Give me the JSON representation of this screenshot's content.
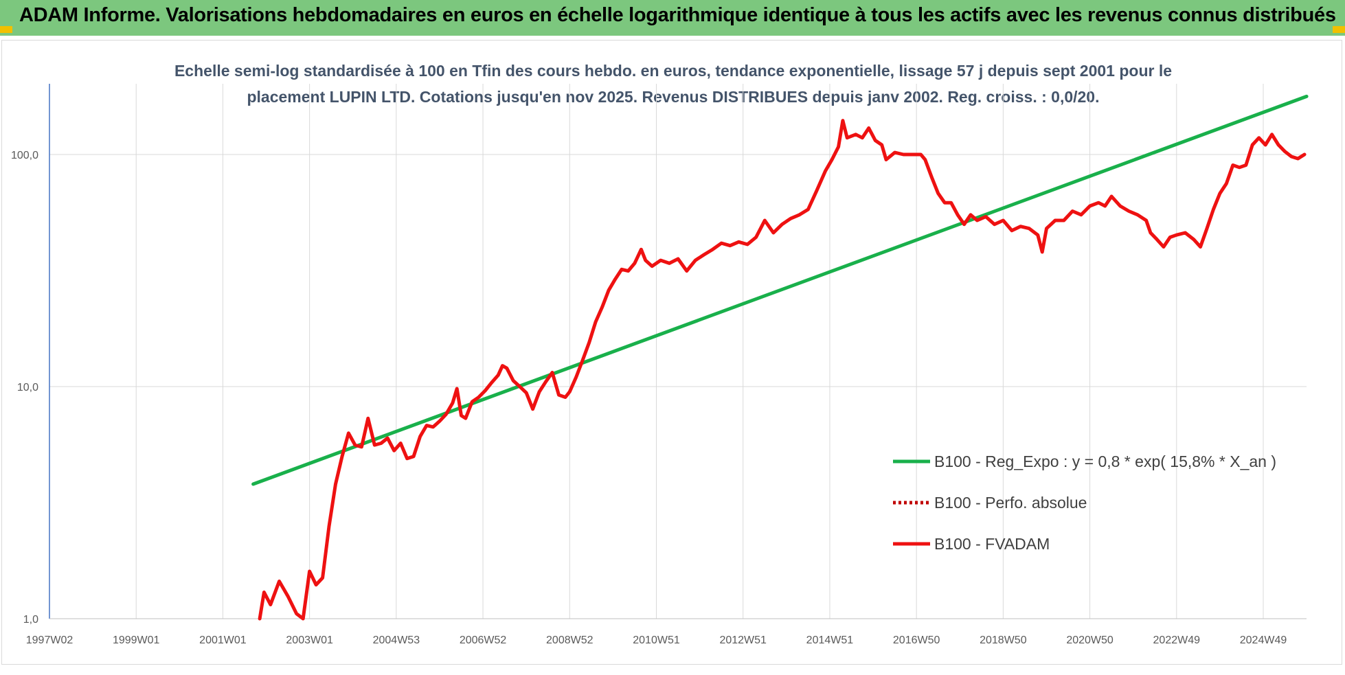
{
  "header": {
    "title": "ADAM Informe. Valorisations hebdomadaires en euros en échelle logarithmique identique à tous les actifs avec les revenus connus distribués"
  },
  "colors": {
    "header_bg": "#7cc77e",
    "corner": "#f2c000",
    "regression": "#19b04b",
    "fvadam": "#ee1111",
    "perfo": "#c00000"
  },
  "chart_data": {
    "type": "line",
    "title_line1": "Echelle semi-log standardisée à 100 en Tfin des cours hebdo. en euros, tendance exponentielle, lissage 57 j depuis sept 2001 pour le",
    "title_line2": "placement LUPIN LTD. Cotations jusqu'en nov 2025. Revenus DISTRIBUES depuis janv 2002. Reg. croiss. : 0,0/20.",
    "y_scale": "log",
    "ylim": [
      1,
      200
    ],
    "xlim": [
      1997.0,
      2026.0
    ],
    "y_ticks": [
      {
        "value": 1,
        "label": "1,0"
      },
      {
        "value": 10,
        "label": "10,0"
      },
      {
        "value": 100,
        "label": "100,0"
      }
    ],
    "x_ticks": [
      {
        "value": 1997.0,
        "label": "1997W02"
      },
      {
        "value": 1999.0,
        "label": "1999W01"
      },
      {
        "value": 2001.0,
        "label": "2001W01"
      },
      {
        "value": 2003.0,
        "label": "2003W01"
      },
      {
        "value": 2005.0,
        "label": "2004W53"
      },
      {
        "value": 2007.0,
        "label": "2006W52"
      },
      {
        "value": 2009.0,
        "label": "2008W52"
      },
      {
        "value": 2011.0,
        "label": "2010W51"
      },
      {
        "value": 2013.0,
        "label": "2012W51"
      },
      {
        "value": 2015.0,
        "label": "2014W51"
      },
      {
        "value": 2017.0,
        "label": "2016W50"
      },
      {
        "value": 2019.0,
        "label": "2018W50"
      },
      {
        "value": 2021.0,
        "label": "2020W50"
      },
      {
        "value": 2023.0,
        "label": "2022W49"
      },
      {
        "value": 2025.0,
        "label": "2024W49"
      }
    ],
    "grid": "vertical and horizontal",
    "legend_position": "bottom-right",
    "series": [
      {
        "name": "B100 - Reg_Expo : y = 0,8 * exp( 15,8% *  X_an )",
        "style": "solid",
        "points": [
          [
            2001.7,
            3.8
          ],
          [
            2026.0,
            178
          ]
        ]
      },
      {
        "name": "B100 - Perfo. absolue",
        "style": "dotted",
        "points": []
      },
      {
        "name": "B100 - FVADAM",
        "style": "solid",
        "points": [
          [
            2001.85,
            1.0
          ],
          [
            2001.95,
            1.3
          ],
          [
            2002.1,
            1.15
          ],
          [
            2002.3,
            1.45
          ],
          [
            2002.5,
            1.25
          ],
          [
            2002.7,
            1.05
          ],
          [
            2002.85,
            1.0
          ],
          [
            2003.0,
            1.6
          ],
          [
            2003.15,
            1.4
          ],
          [
            2003.3,
            1.5
          ],
          [
            2003.45,
            2.5
          ],
          [
            2003.6,
            3.8
          ],
          [
            2003.75,
            5.0
          ],
          [
            2003.9,
            6.3
          ],
          [
            2004.05,
            5.6
          ],
          [
            2004.2,
            5.5
          ],
          [
            2004.35,
            7.3
          ],
          [
            2004.5,
            5.6
          ],
          [
            2004.65,
            5.7
          ],
          [
            2004.8,
            6.0
          ],
          [
            2004.95,
            5.3
          ],
          [
            2005.1,
            5.7
          ],
          [
            2005.25,
            4.9
          ],
          [
            2005.4,
            5.0
          ],
          [
            2005.55,
            6.1
          ],
          [
            2005.7,
            6.8
          ],
          [
            2005.85,
            6.7
          ],
          [
            2006.0,
            7.1
          ],
          [
            2006.15,
            7.6
          ],
          [
            2006.3,
            8.5
          ],
          [
            2006.4,
            9.8
          ],
          [
            2006.5,
            7.5
          ],
          [
            2006.6,
            7.3
          ],
          [
            2006.75,
            8.6
          ],
          [
            2006.9,
            9.0
          ],
          [
            2007.05,
            9.6
          ],
          [
            2007.2,
            10.4
          ],
          [
            2007.35,
            11.2
          ],
          [
            2007.45,
            12.3
          ],
          [
            2007.55,
            12.0
          ],
          [
            2007.7,
            10.6
          ],
          [
            2007.85,
            10.0
          ],
          [
            2008.0,
            9.4
          ],
          [
            2008.15,
            8.0
          ],
          [
            2008.3,
            9.5
          ],
          [
            2008.45,
            10.5
          ],
          [
            2008.6,
            11.5
          ],
          [
            2008.75,
            9.2
          ],
          [
            2008.9,
            9.0
          ],
          [
            2009.0,
            9.5
          ],
          [
            2009.15,
            11.0
          ],
          [
            2009.3,
            13.0
          ],
          [
            2009.45,
            15.5
          ],
          [
            2009.6,
            19.0
          ],
          [
            2009.75,
            22.0
          ],
          [
            2009.9,
            26.0
          ],
          [
            2010.05,
            29.0
          ],
          [
            2010.2,
            32.0
          ],
          [
            2010.35,
            31.5
          ],
          [
            2010.5,
            34.0
          ],
          [
            2010.65,
            39.0
          ],
          [
            2010.75,
            35.0
          ],
          [
            2010.9,
            33.0
          ],
          [
            2011.1,
            35.0
          ],
          [
            2011.3,
            34.0
          ],
          [
            2011.5,
            35.5
          ],
          [
            2011.7,
            31.5
          ],
          [
            2011.9,
            35.0
          ],
          [
            2012.1,
            37.0
          ],
          [
            2012.3,
            39.0
          ],
          [
            2012.5,
            41.5
          ],
          [
            2012.7,
            40.5
          ],
          [
            2012.9,
            42.0
          ],
          [
            2013.1,
            41.0
          ],
          [
            2013.3,
            44.0
          ],
          [
            2013.5,
            52.0
          ],
          [
            2013.7,
            46.0
          ],
          [
            2013.9,
            50.0
          ],
          [
            2014.1,
            53.0
          ],
          [
            2014.3,
            55.0
          ],
          [
            2014.5,
            58.0
          ],
          [
            2014.7,
            70.0
          ],
          [
            2014.9,
            85.0
          ],
          [
            2015.05,
            95.0
          ],
          [
            2015.2,
            108.0
          ],
          [
            2015.3,
            140.0
          ],
          [
            2015.4,
            118.0
          ],
          [
            2015.6,
            122.0
          ],
          [
            2015.75,
            118.0
          ],
          [
            2015.9,
            130.0
          ],
          [
            2016.05,
            115.0
          ],
          [
            2016.2,
            110.0
          ],
          [
            2016.3,
            95.0
          ],
          [
            2016.5,
            102.0
          ],
          [
            2016.7,
            100.0
          ],
          [
            2016.9,
            100.0
          ],
          [
            2017.1,
            100.0
          ],
          [
            2017.2,
            95.0
          ],
          [
            2017.35,
            80.0
          ],
          [
            2017.5,
            68.0
          ],
          [
            2017.65,
            62.0
          ],
          [
            2017.8,
            62.0
          ],
          [
            2017.95,
            55.0
          ],
          [
            2018.1,
            50.0
          ],
          [
            2018.25,
            55.0
          ],
          [
            2018.4,
            52.0
          ],
          [
            2018.6,
            54.0
          ],
          [
            2018.8,
            50.0
          ],
          [
            2019.0,
            52.0
          ],
          [
            2019.2,
            47.0
          ],
          [
            2019.4,
            49.0
          ],
          [
            2019.6,
            48.0
          ],
          [
            2019.8,
            45.0
          ],
          [
            2019.9,
            38.0
          ],
          [
            2020.0,
            48.0
          ],
          [
            2020.2,
            52.0
          ],
          [
            2020.4,
            52.0
          ],
          [
            2020.6,
            57.0
          ],
          [
            2020.8,
            55.0
          ],
          [
            2021.0,
            60.0
          ],
          [
            2021.2,
            62.0
          ],
          [
            2021.35,
            60.0
          ],
          [
            2021.5,
            66.0
          ],
          [
            2021.7,
            60.0
          ],
          [
            2021.9,
            57.0
          ],
          [
            2022.1,
            55.0
          ],
          [
            2022.3,
            52.0
          ],
          [
            2022.4,
            46.0
          ],
          [
            2022.55,
            43.0
          ],
          [
            2022.7,
            40.0
          ],
          [
            2022.85,
            44.0
          ],
          [
            2023.0,
            45.0
          ],
          [
            2023.2,
            46.0
          ],
          [
            2023.4,
            43.0
          ],
          [
            2023.55,
            40.0
          ],
          [
            2023.7,
            48.0
          ],
          [
            2023.85,
            58.0
          ],
          [
            2024.0,
            68.0
          ],
          [
            2024.15,
            75.0
          ],
          [
            2024.3,
            90.0
          ],
          [
            2024.45,
            88.0
          ],
          [
            2024.6,
            90.0
          ],
          [
            2024.75,
            110.0
          ],
          [
            2024.9,
            118.0
          ],
          [
            2025.05,
            110.0
          ],
          [
            2025.2,
            122.0
          ],
          [
            2025.35,
            110.0
          ],
          [
            2025.5,
            103.0
          ],
          [
            2025.65,
            98.0
          ],
          [
            2025.8,
            96.0
          ],
          [
            2025.95,
            100.0
          ]
        ]
      }
    ]
  }
}
